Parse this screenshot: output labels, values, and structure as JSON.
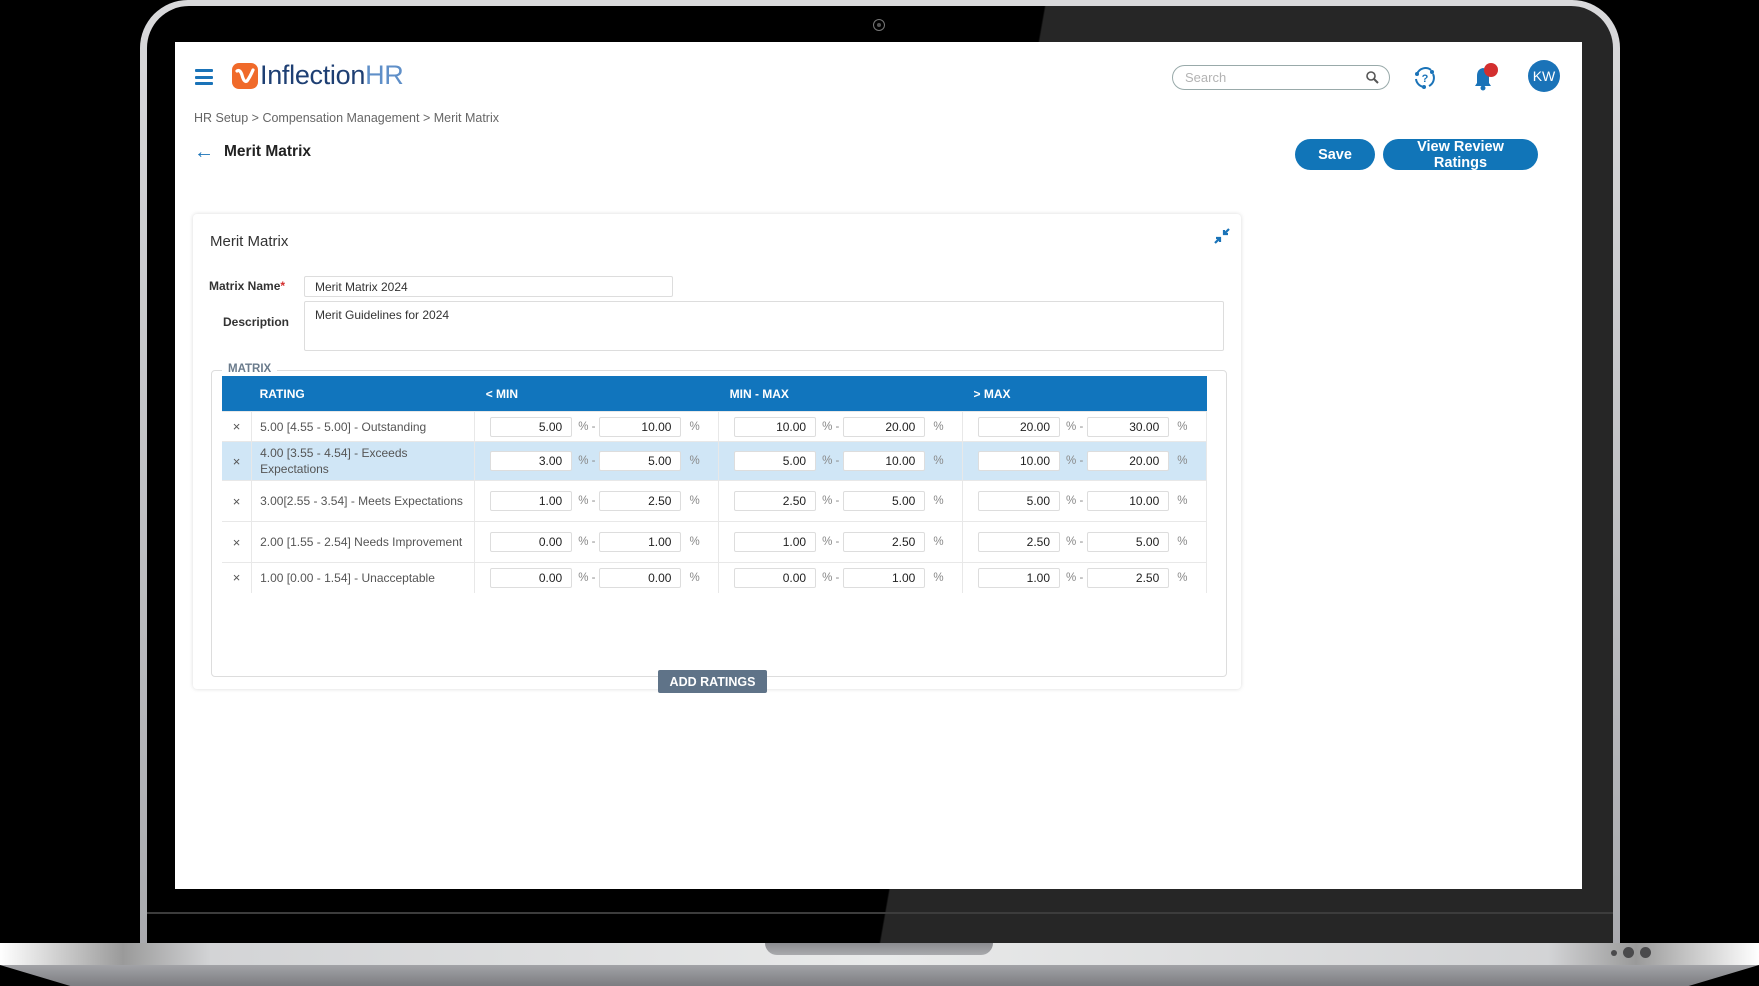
{
  "header": {
    "menu_icon": "hamburger-icon",
    "logo_text": "Inflection",
    "logo_text_accent": "HR",
    "search": {
      "placeholder": "Search",
      "value": ""
    },
    "help_icon": "help-icon",
    "notifications_icon": "bell-icon",
    "notification_badge_color": "#d32f2f",
    "avatar_initials": "KW"
  },
  "breadcrumb": "HR Setup > Compensation Management > Merit Matrix",
  "page": {
    "title": "Merit Matrix",
    "back_icon": "arrow-left-icon",
    "save_label": "Save",
    "view_label": "View Review Ratings"
  },
  "card": {
    "title": "Merit Matrix",
    "collapse_icon": "compress-icon",
    "matrix_name_label": "Matrix Name",
    "matrix_name_required": "*",
    "matrix_name_value": "Merit Matrix 2024",
    "description_label": "Description",
    "description_value": "Merit Guidelines for 2024",
    "matrix_legend": "MATRIX",
    "columns": [
      "RATING",
      "< MIN",
      "MIN - MAX",
      "> MAX"
    ],
    "rows": [
      {
        "rating": "5.00 [4.55 - 5.00] - Outstanding",
        "below_min": [
          "5.00",
          "10.00"
        ],
        "min_max": [
          "10.00",
          "20.00"
        ],
        "above_max": [
          "20.00",
          "30.00"
        ],
        "highlighted": false
      },
      {
        "rating": "4.00 [3.55 - 4.54] - Exceeds Expectations",
        "below_min": [
          "3.00",
          "5.00"
        ],
        "min_max": [
          "5.00",
          "10.00"
        ],
        "above_max": [
          "10.00",
          "20.00"
        ],
        "highlighted": true
      },
      {
        "rating": "3.00[2.55 - 3.54] - Meets Expectations",
        "below_min": [
          "1.00",
          "2.50"
        ],
        "min_max": [
          "2.50",
          "5.00"
        ],
        "above_max": [
          "5.00",
          "10.00"
        ],
        "highlighted": false
      },
      {
        "rating": "2.00 [1.55 - 2.54] Needs Improvement",
        "below_min": [
          "0.00",
          "1.00"
        ],
        "min_max": [
          "1.00",
          "2.50"
        ],
        "above_max": [
          "2.50",
          "5.00"
        ],
        "highlighted": false
      },
      {
        "rating": "1.00 [0.00 - 1.54] - Unacceptable",
        "below_min": [
          "0.00",
          "0.00"
        ],
        "min_max": [
          "0.00",
          "1.00"
        ],
        "above_max": [
          "1.00",
          "2.50"
        ],
        "highlighted": false
      }
    ],
    "remove_symbol": "×",
    "pct_sep": "% -",
    "pct": "%",
    "add_label": "ADD RATINGS"
  },
  "colors": {
    "primary": "#1175b8",
    "header_bg": "#1175bd",
    "highlight_row": "#d0e6f6",
    "add_button": "#5f7388",
    "logo_orange": "#f06a2a",
    "logo_navy": "#1e3f73"
  }
}
